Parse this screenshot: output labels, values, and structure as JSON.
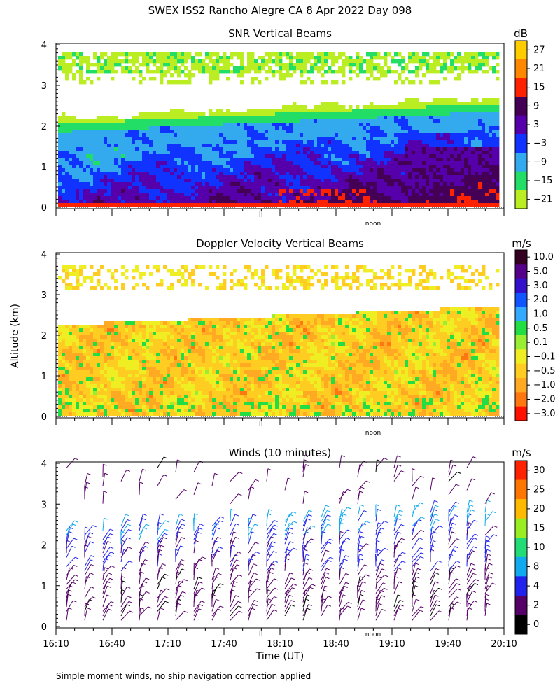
{
  "header": {
    "title": "SWEX ISS2 Rancho Alegre CA   8 Apr 2022 Day 098",
    "y_axis_label": "Altitude (km)",
    "x_axis_label": "Time (UT)",
    "noon_label": "noon",
    "footnote": "Simple moment winds, no ship navigation correction applied"
  },
  "chart_data": [
    {
      "type": "heatmap",
      "title": "SNR Vertical Beams",
      "ylabel": "Altitude (km)",
      "ylim": [
        0,
        4
      ],
      "y_ticks": [
        "0",
        "1",
        "2",
        "3",
        "4"
      ],
      "x_start": "16:10",
      "x_end": "20:10",
      "colorbar": {
        "unit": "dB",
        "labels": [
          "27",
          "21",
          "15",
          "9",
          "3",
          "−3",
          "−9",
          "−15",
          "−21"
        ],
        "colors": [
          "#ffcc00",
          "#ff8800",
          "#ff2200",
          "#440055",
          "#5500aa",
          "#1133ff",
          "#33aaee",
          "#22dd66",
          "#bbee22"
        ]
      }
    },
    {
      "type": "heatmap",
      "title": "Doppler Velocity Vertical Beams",
      "ylabel": "Altitude (km)",
      "ylim": [
        0,
        4
      ],
      "y_ticks": [
        "0",
        "1",
        "2",
        "3",
        "4"
      ],
      "x_start": "16:10",
      "x_end": "20:10",
      "colorbar": {
        "unit": "m/s",
        "labels": [
          "10.0",
          "5.0",
          "3.0",
          "2.0",
          "1.0",
          "0.5",
          "0.1",
          "−0.1",
          "−0.5",
          "−1.0",
          "−2.0",
          "−3.0"
        ],
        "colors": [
          "#330022",
          "#550088",
          "#3311cc",
          "#1155ff",
          "#33aaff",
          "#22dd44",
          "#99ee33",
          "#eeee22",
          "#ffcc22",
          "#ffaa22",
          "#ff7711",
          "#ff1100"
        ]
      }
    },
    {
      "type": "scatter",
      "title": "Winds (10 minutes)",
      "ylabel": "Altitude (km)",
      "xlabel": "Time (UT)",
      "ylim": [
        0,
        4
      ],
      "y_ticks": [
        "0",
        "1",
        "2",
        "3",
        "4"
      ],
      "x_ticks": [
        "16:10",
        "16:40",
        "17:10",
        "17:40",
        "18:10",
        "18:40",
        "19:10",
        "19:40",
        "20:10"
      ],
      "colorbar": {
        "unit": "m/s",
        "labels": [
          "30",
          "25",
          "20",
          "15",
          "10",
          "8",
          "4",
          "2",
          "0"
        ],
        "colors": [
          "#ff2200",
          "#ff7700",
          "#ffbb00",
          "#99ee22",
          "#22dd77",
          "#11aaee",
          "#2222ee",
          "#550066",
          "#000000"
        ]
      }
    }
  ]
}
